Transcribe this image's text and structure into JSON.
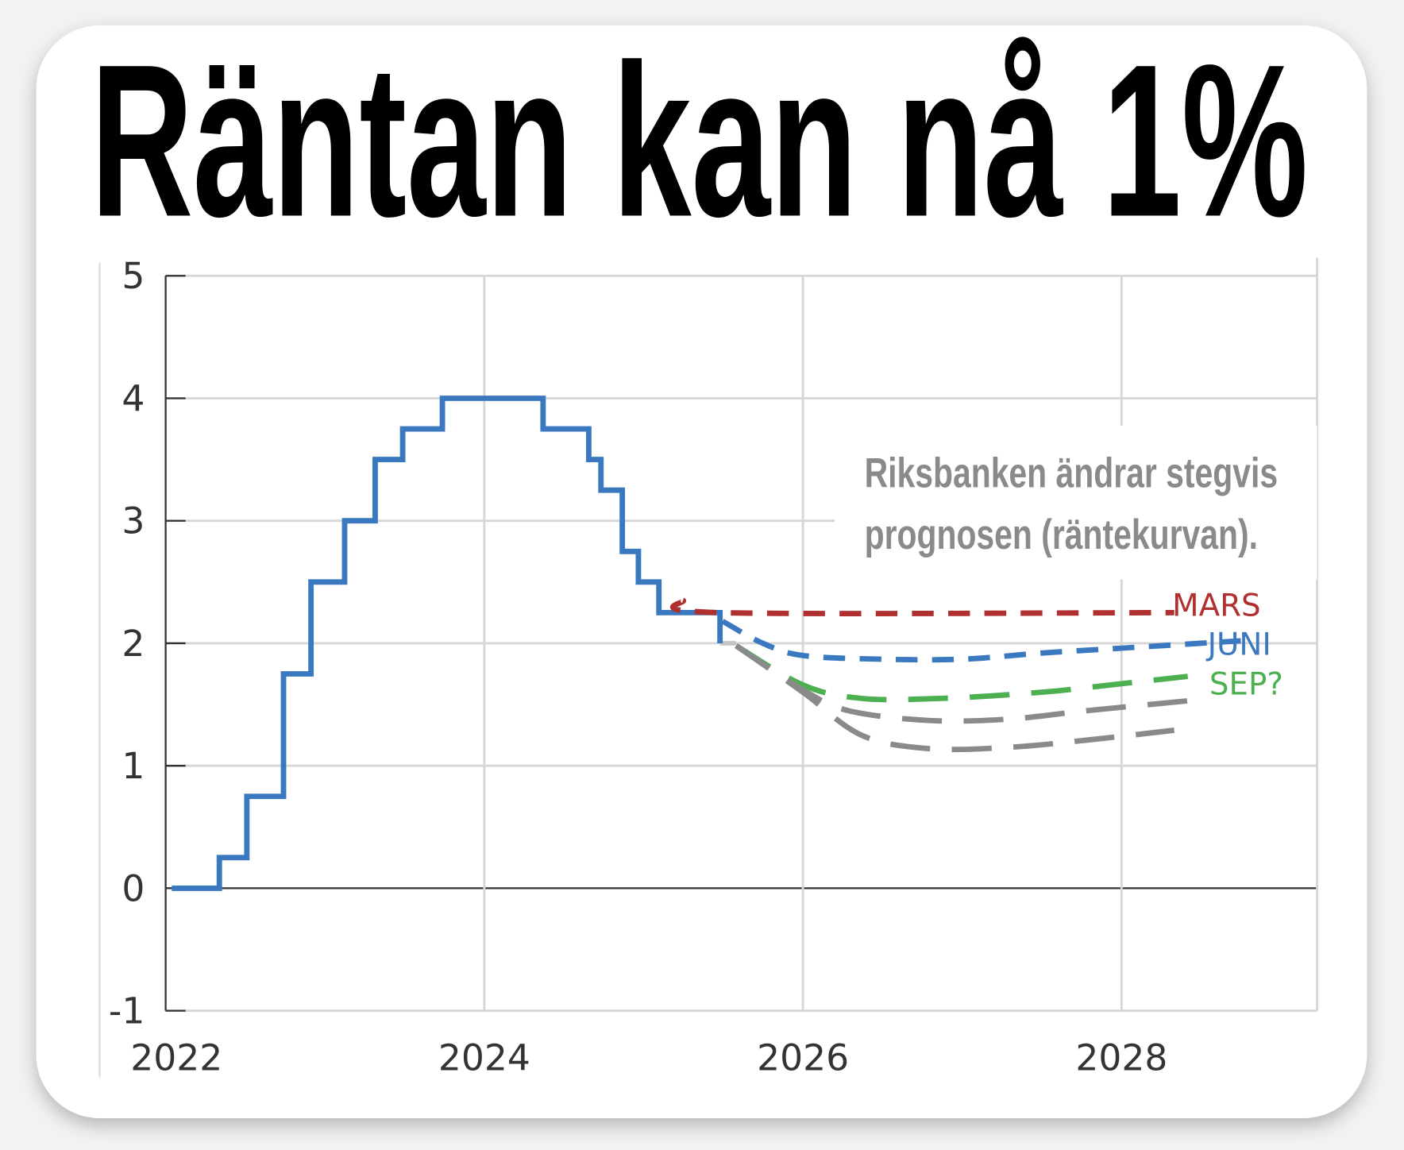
{
  "title": "Räntan kan nå 1%",
  "annotation": [
    "Riksbanken ändrar stegvis",
    "prognosen (räntekurvan)."
  ],
  "chart_data": {
    "type": "line",
    "title": "Räntan kan nå 1%",
    "xlabel": "",
    "ylabel": "",
    "x_ticks": [
      "2022",
      "2024",
      "2026",
      "2028"
    ],
    "y_ticks": [
      "5",
      "4",
      "3",
      "2",
      "1",
      "0",
      "-1"
    ],
    "xlim": [
      "2022-01-01",
      "2029-03-01"
    ],
    "ylim": [
      -1,
      5
    ],
    "grid": true,
    "series": [
      {
        "kind": "step",
        "color": "#3a78c0",
        "points": [
          [
            "2022-01-15",
            0
          ],
          [
            "2022-05-04",
            0.25
          ],
          [
            "2022-07-06",
            0.75
          ],
          [
            "2022-09-28",
            1.75
          ],
          [
            "2022-11-30",
            2.5
          ],
          [
            "2023-02-15",
            3.0
          ],
          [
            "2023-04-26",
            3.5
          ],
          [
            "2023-06-28",
            3.75
          ],
          [
            "2023-09-27",
            4.0
          ],
          [
            "2024-05-15",
            3.75
          ],
          [
            "2024-08-28",
            3.5
          ],
          [
            "2024-09-25",
            3.25
          ],
          [
            "2024-11-13",
            2.75
          ],
          [
            "2024-12-20",
            2.5
          ],
          [
            "2025-02-05",
            2.25
          ],
          [
            "2025-06-25",
            2.0
          ]
        ]
      },
      {
        "name": "MARS",
        "color": "#b03030",
        "dash": "dashed",
        "points": [
          [
            "2025-04-01",
            2.35
          ],
          [
            "2025-06-25",
            2.25
          ],
          [
            "2028-05-01",
            2.25
          ]
        ]
      },
      {
        "name": "JUNI",
        "color": "#3a78c0",
        "dash": "dashed",
        "points": [
          [
            "2025-07-01",
            2.18
          ],
          [
            "2025-10-01",
            2.0
          ],
          [
            "2026-01-01",
            1.9
          ],
          [
            "2026-07-01",
            1.87
          ],
          [
            "2027-01-01",
            1.87
          ],
          [
            "2027-07-01",
            1.92
          ],
          [
            "2028-01-01",
            1.96
          ],
          [
            "2028-07-01",
            2.0
          ],
          [
            "2028-10-01",
            2.02
          ]
        ]
      },
      {
        "name": "SEP?",
        "color": "#4caf50",
        "dash": "dashed",
        "points": [
          [
            "2025-08-01",
            1.98
          ],
          [
            "2026-01-01",
            1.66
          ],
          [
            "2026-05-15",
            1.55
          ],
          [
            "2026-11-15",
            1.55
          ],
          [
            "2027-07-01",
            1.6
          ],
          [
            "2028-01-01",
            1.67
          ],
          [
            "2028-06-01",
            1.73
          ]
        ]
      },
      {
        "color": "#8a8a8a",
        "dash": "dashed",
        "points": [
          [
            "2025-08-01",
            1.98
          ],
          [
            "2026-01-01",
            1.62
          ],
          [
            "2026-04-15",
            1.45
          ],
          [
            "2026-10-15",
            1.37
          ],
          [
            "2027-04-15",
            1.38
          ],
          [
            "2027-10-15",
            1.45
          ],
          [
            "2028-06-01",
            1.53
          ]
        ]
      },
      {
        "color": "#8a8a8a",
        "dash": "dashed",
        "points": [
          [
            "2025-08-01",
            1.98
          ],
          [
            "2026-01-01",
            1.6
          ],
          [
            "2026-05-15",
            1.25
          ],
          [
            "2026-10-15",
            1.14
          ],
          [
            "2027-04-15",
            1.15
          ],
          [
            "2027-10-15",
            1.21
          ],
          [
            "2028-05-01",
            1.29
          ]
        ]
      }
    ]
  }
}
